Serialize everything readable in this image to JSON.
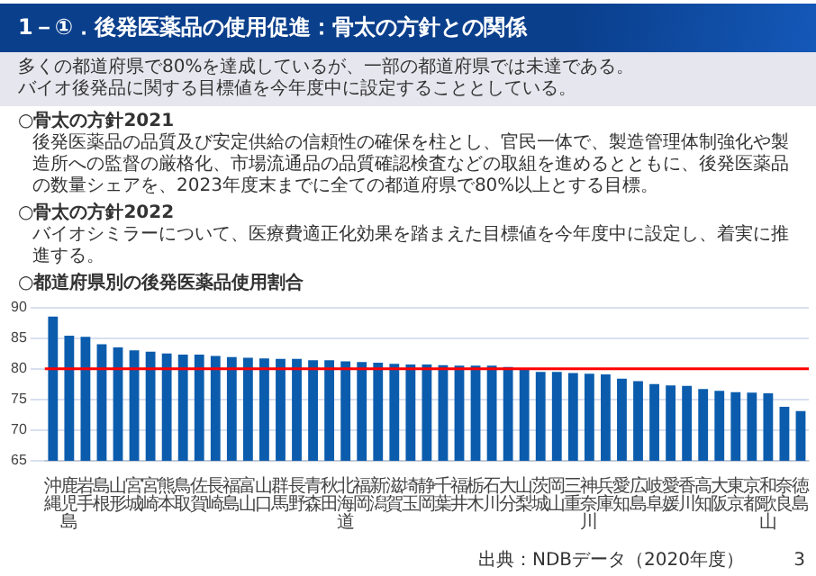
{
  "chart_data": {
    "type": "bar",
    "title": "○都道府県別の後発医薬品使用割合",
    "categories": [
      "沖縄",
      "鹿児島",
      "岩手",
      "島根",
      "山形",
      "宮城",
      "宮崎",
      "熊本",
      "鳥取",
      "佐賀",
      "長崎",
      "福島",
      "富山",
      "山口",
      "群馬",
      "長野",
      "青森",
      "秋田",
      "北海道",
      "福岡",
      "新潟",
      "滋賀",
      "埼玉",
      "静岡",
      "千葉",
      "福井",
      "栃木",
      "石川",
      "大分",
      "山梨",
      "茨城",
      "岡山",
      "三重",
      "神奈川",
      "兵庫",
      "愛知",
      "広島",
      "岐阜",
      "愛媛",
      "香川",
      "高知",
      "大阪",
      "東京",
      "京都",
      "和歌山",
      "奈良",
      "徳島"
    ],
    "values": [
      88.5,
      85.4,
      85.2,
      84.0,
      83.5,
      83.0,
      82.8,
      82.5,
      82.3,
      82.3,
      82.1,
      81.9,
      81.8,
      81.7,
      81.6,
      81.6,
      81.4,
      81.4,
      81.2,
      81.1,
      81.0,
      80.8,
      80.7,
      80.7,
      80.6,
      80.5,
      80.5,
      80.5,
      80.3,
      80.0,
      79.5,
      79.5,
      79.3,
      79.2,
      79.1,
      78.4,
      78.0,
      77.5,
      77.3,
      77.2,
      76.7,
      76.4,
      76.2,
      76.1,
      76.0,
      73.8,
      73.1
    ],
    "color": "#0b5cad",
    "ylim": [
      65,
      90
    ],
    "yticks": [
      65,
      70,
      75,
      80,
      85,
      90
    ],
    "grid": "y",
    "legend": false,
    "ref_lines": [
      {
        "axis": "y",
        "value": 80,
        "color": "#ff0000"
      }
    ],
    "annotations": [
      "1－①．後発医薬品の使用促進：骨太の方針との関係",
      "多くの都道府県で80%を達成しているが、一部の都道府県では未達である。",
      "バイオ後発品に関する目標値を今年度中に設定することとしている。",
      "○骨太の方針2021",
      "後発医薬品の品質及び安定供給の信頼性の確保を柱とし、官民一体で、製造管理体制強化や製造所への監督の厳格化、市場流通品の品質確認検査などの取組を進めるとともに、後発医薬品の数量シェアを、2023年度末までに全ての都道府県で80%以上とする目標。",
      "○骨太の方針2022",
      "バイオシミラーについて、医療費適正化効果を踏まえた目標値を今年度中に設定し、着実に推進する。",
      "出典：NDBデータ（2020年度）",
      "3"
    ]
  }
}
